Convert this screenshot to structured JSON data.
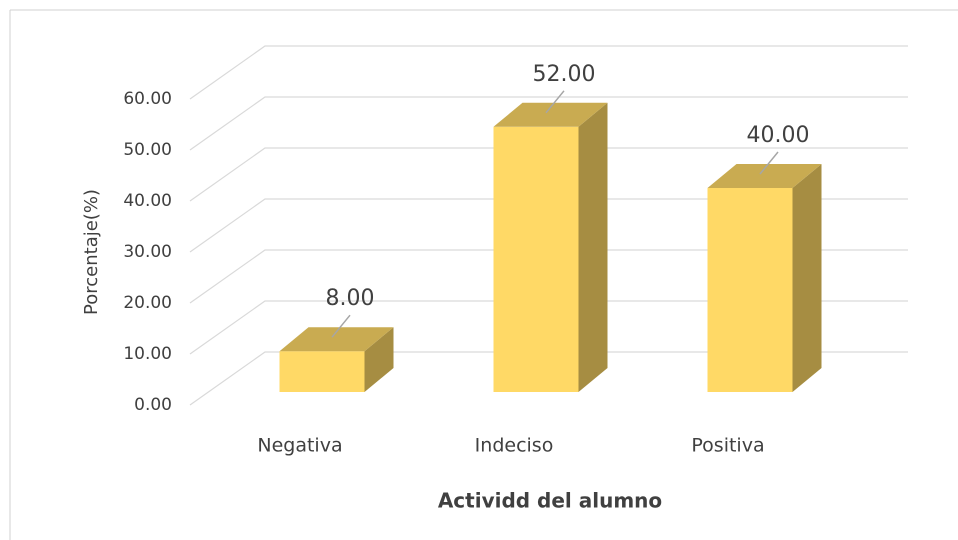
{
  "chart_data": {
    "type": "bar3d",
    "x_label": "Actividd del alumno",
    "y_label": "Porcentaje(%)",
    "categories": [
      "Negativa",
      "Indeciso",
      "Positiva"
    ],
    "values": [
      8,
      52,
      40
    ],
    "value_labels": [
      "8.00",
      "52.00",
      "40.00"
    ],
    "color": "#FFD966",
    "ylim": [
      0,
      60
    ],
    "yticks": [
      {
        "value": 0,
        "label": "0.00"
      },
      {
        "value": 10,
        "label": "10.00"
      },
      {
        "value": 20,
        "label": "20.00"
      },
      {
        "value": 30,
        "label": "30.00"
      },
      {
        "value": 40,
        "label": "40.00"
      },
      {
        "value": 50,
        "label": "50.00"
      },
      {
        "value": 60,
        "label": "60.00"
      }
    ],
    "grid": true
  }
}
